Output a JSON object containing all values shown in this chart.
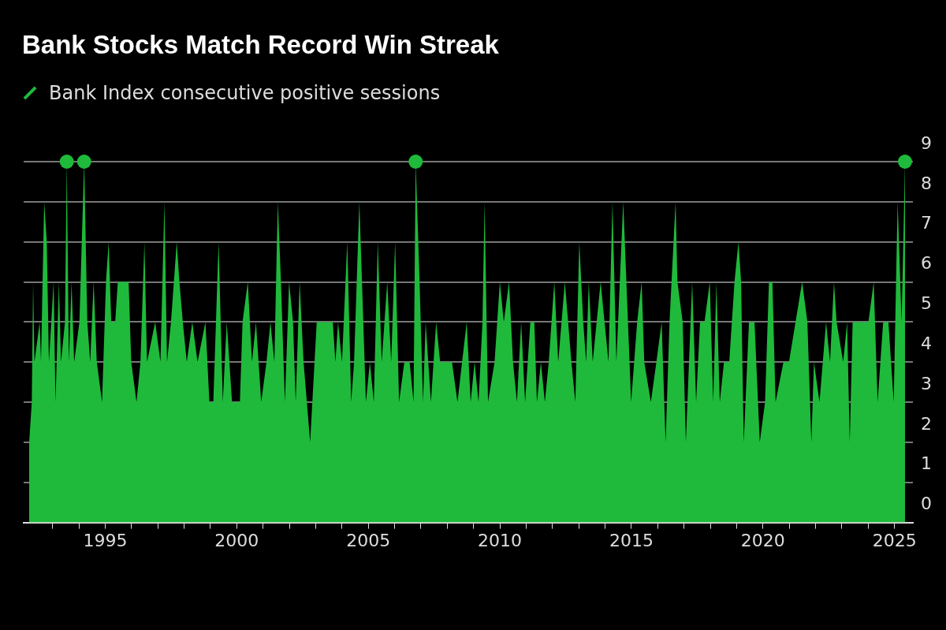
{
  "chart_data": {
    "type": "area",
    "title": "Bank Stocks Match Record Win Streak",
    "xlim": [
      1991.9,
      2025.7
    ],
    "xticks": [
      {
        "value": 1993,
        "label": null
      },
      {
        "value": 1994,
        "label": null
      },
      1995,
      {
        "value": 1996,
        "label": null
      },
      {
        "value": 1997,
        "label": null
      },
      {
        "value": 1998,
        "label": null
      },
      {
        "value": 1999,
        "label": null
      },
      2000,
      {
        "value": 2001,
        "label": null
      },
      {
        "value": 2002,
        "label": null
      },
      {
        "value": 2003,
        "label": null
      },
      {
        "value": 2004,
        "label": null
      },
      2005,
      {
        "value": 2006,
        "label": null
      },
      {
        "value": 2007,
        "label": null
      },
      {
        "value": 2008,
        "label": null
      },
      {
        "value": 2009,
        "label": null
      },
      2010,
      {
        "value": 2011,
        "label": null
      },
      {
        "value": 2012,
        "label": null
      },
      {
        "value": 2013,
        "label": null
      },
      {
        "value": 2014,
        "label": null
      },
      2015,
      {
        "value": 2016,
        "label": null
      },
      {
        "value": 2017,
        "label": null
      },
      {
        "value": 2018,
        "label": null
      },
      {
        "value": 2019,
        "label": null
      },
      2020,
      {
        "value": 2021,
        "label": null
      },
      {
        "value": 2022,
        "label": null
      },
      {
        "value": 2023,
        "label": null
      },
      {
        "value": 2024,
        "label": null
      },
      2025
    ],
    "ylim": [
      0,
      9
    ],
    "yticks": [
      0,
      1,
      2,
      3,
      4,
      5,
      6,
      7,
      8,
      9
    ],
    "grid": "y",
    "legend": "top left",
    "series": [
      {
        "name": "Bank Index consecutive positive sessions",
        "color": "#1fba3b",
        "x": [
          1992.11,
          1992.21,
          1992.26,
          1992.31,
          1992.51,
          1992.56,
          1992.68,
          1992.78,
          1992.86,
          1993.04,
          1993.11,
          1993.24,
          1993.32,
          1993.47,
          1993.54,
          1993.62,
          1993.72,
          1993.82,
          1994.02,
          1994.2,
          1994.32,
          1994.43,
          1994.56,
          1994.68,
          1994.88,
          1995.03,
          1995.13,
          1995.23,
          1995.38,
          1995.48,
          1995.89,
          1995.99,
          1996.19,
          1996.34,
          1996.49,
          1996.59,
          1996.9,
          1997.1,
          1997.25,
          1997.35,
          1997.5,
          1997.72,
          1997.82,
          1997.95,
          1998.1,
          1998.31,
          1998.51,
          1998.81,
          1998.96,
          1999.11,
          1999.31,
          1999.47,
          1999.62,
          1999.82,
          2000.12,
          2000.22,
          2000.42,
          2000.58,
          2000.73,
          2000.93,
          2001.13,
          2001.28,
          2001.43,
          2001.56,
          2001.68,
          2001.83,
          2001.99,
          2002.14,
          2002.24,
          2002.39,
          2002.54,
          2002.79,
          2003.04,
          2003.25,
          2003.65,
          2003.75,
          2003.85,
          2004.0,
          2004.2,
          2004.35,
          2004.46,
          2004.66,
          2004.76,
          2004.91,
          2005.06,
          2005.21,
          2005.36,
          2005.51,
          2005.72,
          2005.87,
          2006.02,
          2006.17,
          2006.37,
          2006.57,
          2006.72,
          2006.8,
          2006.95,
          2007.08,
          2007.18,
          2007.38,
          2007.58,
          2007.73,
          2008.18,
          2008.39,
          2008.74,
          2008.89,
          2009.04,
          2009.19,
          2009.34,
          2009.42,
          2009.55,
          2009.8,
          2010.0,
          2010.15,
          2010.35,
          2010.5,
          2010.65,
          2010.81,
          2010.96,
          2011.16,
          2011.31,
          2011.41,
          2011.56,
          2011.71,
          2011.86,
          2012.07,
          2012.22,
          2012.47,
          2012.72,
          2012.87,
          2013.02,
          2013.17,
          2013.28,
          2013.38,
          2013.53,
          2013.83,
          2013.98,
          2014.13,
          2014.28,
          2014.43,
          2014.69,
          2014.99,
          2015.22,
          2015.39,
          2015.49,
          2015.74,
          2015.95,
          2016.15,
          2016.3,
          2016.45,
          2016.68,
          2016.75,
          2016.95,
          2017.07,
          2017.31,
          2017.46,
          2017.61,
          2017.78,
          2017.98,
          2018.11,
          2018.23,
          2018.36,
          2018.52,
          2018.72,
          2018.92,
          2019.07,
          2019.17,
          2019.27,
          2019.47,
          2019.68,
          2019.88,
          2020.08,
          2020.23,
          2020.36,
          2020.48,
          2020.78,
          2020.99,
          2021.24,
          2021.49,
          2021.69,
          2021.84,
          2021.94,
          2022.15,
          2022.4,
          2022.55,
          2022.7,
          2022.8,
          2023.05,
          2023.2,
          2023.3,
          2023.41,
          2023.71,
          2024.01,
          2024.21,
          2024.36,
          2024.57,
          2024.77,
          2024.87,
          2024.97,
          2025.12,
          2025.27,
          2025.4
        ],
        "values": [
          2,
          3,
          6,
          4,
          5,
          4,
          8,
          7,
          4,
          6,
          3,
          6,
          4,
          5,
          9,
          4,
          6,
          4,
          5,
          9,
          5,
          4,
          6,
          4,
          3,
          6,
          7,
          5,
          5,
          6,
          6,
          4,
          3,
          4,
          7,
          4,
          5,
          4,
          8,
          4,
          5,
          7,
          6,
          5,
          4,
          5,
          4,
          5,
          3,
          3,
          7,
          3,
          5,
          3,
          3,
          5,
          6,
          4,
          5,
          3,
          4,
          5,
          4,
          8,
          6,
          3,
          6,
          5,
          3,
          6,
          4,
          2,
          5,
          5,
          5,
          4,
          5,
          4,
          7,
          3,
          4,
          8,
          6,
          3,
          4,
          3,
          7,
          4,
          6,
          4,
          7,
          3,
          4,
          4,
          3,
          9,
          6,
          3,
          5,
          3,
          5,
          4,
          4,
          3,
          5,
          3,
          4,
          3,
          5,
          8,
          3,
          4,
          6,
          5,
          6,
          4,
          3,
          5,
          3,
          5,
          5,
          3,
          4,
          3,
          4,
          6,
          4,
          6,
          4,
          3,
          7,
          5,
          4,
          6,
          4,
          6,
          5,
          4,
          8,
          4,
          8,
          3,
          5,
          6,
          4,
          3,
          4,
          5,
          2,
          5,
          8,
          6,
          5,
          2,
          6,
          3,
          5,
          5,
          6,
          3,
          6,
          3,
          4,
          4,
          6,
          7,
          6,
          2,
          5,
          5,
          2,
          3,
          6,
          6,
          3,
          4,
          4,
          5,
          6,
          5,
          2,
          4,
          3,
          5,
          4,
          6,
          5,
          4,
          5,
          2,
          5,
          5,
          5,
          6,
          3,
          5,
          5,
          4,
          3,
          8,
          5,
          9
        ]
      },
      {
        "type": "scatter",
        "color": "#1fba3b",
        "marker": "circle",
        "x": [
          1993.54,
          1994.2,
          2006.8,
          2025.4
        ],
        "values": [
          9,
          9,
          9,
          9
        ]
      }
    ]
  }
}
